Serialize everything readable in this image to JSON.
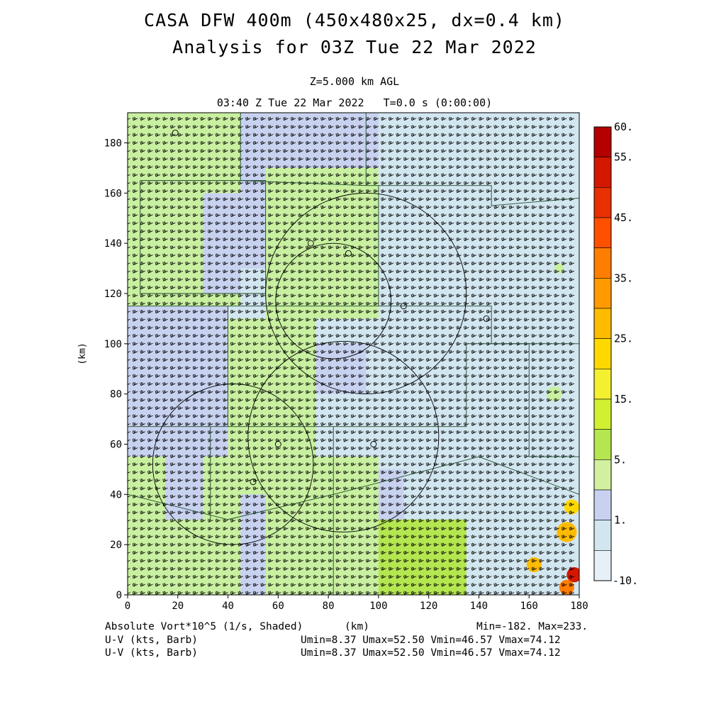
{
  "header": {
    "title_line1": "CASA DFW 400m (450x480x25, dx=0.4 km)",
    "title_line2": "Analysis for 03Z Tue 22 Mar 2022",
    "level": "Z=5.000 km AGL",
    "valid_time": "03:40 Z Tue 22 Mar 2022   T=0.0 s (0:00:00)"
  },
  "footer": {
    "field1": "Absolute Vort*10^5 (1/s, Shaded)",
    "field2": "U-V (kts, Barb)",
    "field3": "U-V (kts, Barb)",
    "xunit": "(km)",
    "minmax": "Min=-182. Max=233.",
    "uv_stats1": "Umin=8.37 Umax=52.50 Vmin=46.57 Vmax=74.12",
    "uv_stats2": "Umin=8.37 Umax=52.50 Vmin=46.57 Vmax=74.12"
  },
  "chart_data": {
    "type": "heatmap",
    "field": "Absolute Vort*10^5 (1/s)",
    "xlabel": "",
    "ylabel": "(km)",
    "xlim": [
      0,
      180
    ],
    "ylim": [
      0,
      192
    ],
    "xticks": [
      "0",
      "20",
      "40",
      "60",
      "80",
      "100",
      "120",
      "140",
      "160",
      "180"
    ],
    "yticks": [
      "0",
      "20",
      "40",
      "60",
      "80",
      "100",
      "120",
      "140",
      "160",
      "180"
    ],
    "colorbar": {
      "labels": [
        "60.",
        "55.",
        "45.",
        "35.",
        "25.",
        "15.",
        "5.",
        "1.",
        "-10."
      ],
      "colors": [
        "#b40000",
        "#d41800",
        "#e83000",
        "#ff5000",
        "#ff7d00",
        "#ff9a00",
        "#ffbb00",
        "#ffd800",
        "#f4f030",
        "#d2f032",
        "#b4e650",
        "#d2f0a0",
        "#c8d2f0",
        "#d2e6f0",
        "#e6f0f8"
      ]
    },
    "regions": [
      {
        "x0": 0,
        "x1": 10,
        "y0": 160,
        "y1": 192,
        "v": 20
      },
      {
        "x0": 0,
        "x1": 45,
        "y0": 115,
        "y1": 192,
        "v": 8
      },
      {
        "x0": 45,
        "x1": 100,
        "y0": 130,
        "y1": 192,
        "v": 3
      },
      {
        "x0": 55,
        "x1": 100,
        "y0": 110,
        "y1": 170,
        "v": 7
      },
      {
        "x0": 100,
        "x1": 180,
        "y0": 100,
        "y1": 192,
        "v": 0
      },
      {
        "x0": 30,
        "x1": 45,
        "y0": 120,
        "y1": 160,
        "v": 3
      },
      {
        "x0": 0,
        "x1": 40,
        "y0": 55,
        "y1": 115,
        "v": 3
      },
      {
        "x0": 40,
        "x1": 75,
        "y0": 55,
        "y1": 110,
        "v": 8
      },
      {
        "x0": 75,
        "x1": 95,
        "y0": 80,
        "y1": 100,
        "v": 3
      },
      {
        "x0": 95,
        "x1": 135,
        "y0": 50,
        "y1": 100,
        "v": 0
      },
      {
        "x0": 135,
        "x1": 180,
        "y0": 0,
        "y1": 100,
        "v": 0
      },
      {
        "x0": 0,
        "x1": 100,
        "y0": 0,
        "y1": 55,
        "v": 8
      },
      {
        "x0": 15,
        "x1": 30,
        "y0": 30,
        "y1": 70,
        "v": 3
      },
      {
        "x0": 45,
        "x1": 55,
        "y0": 0,
        "y1": 40,
        "v": 3
      },
      {
        "x0": 100,
        "x1": 135,
        "y0": 0,
        "y1": 30,
        "v": 14
      },
      {
        "x0": 100,
        "x1": 110,
        "y0": 30,
        "y1": 50,
        "v": 3
      },
      {
        "x0": 140,
        "x1": 180,
        "y0": 0,
        "y1": 30,
        "v": 0
      }
    ],
    "hotspots": [
      {
        "x": 175,
        "y": 25,
        "r": 4,
        "v": 28
      },
      {
        "x": 177,
        "y": 35,
        "r": 3,
        "v": 22
      },
      {
        "x": 162,
        "y": 12,
        "r": 3,
        "v": 25
      },
      {
        "x": 178,
        "y": 8,
        "r": 3,
        "v": 50
      },
      {
        "x": 175,
        "y": 3,
        "r": 3,
        "v": 35
      },
      {
        "x": 170,
        "y": 80,
        "r": 3,
        "v": 8
      },
      {
        "x": 172,
        "y": 130,
        "r": 2,
        "v": 8
      }
    ],
    "range_rings": [
      {
        "x": 82,
        "y": 117,
        "r": 23
      },
      {
        "x": 86,
        "y": 63,
        "r": 38
      },
      {
        "x": 42,
        "y": 52,
        "r": 32
      },
      {
        "x": 95,
        "y": 120,
        "r": 40
      }
    ],
    "counties": [
      [
        [
          5,
          165
        ],
        [
          55,
          165
        ],
        [
          55,
          120
        ],
        [
          5,
          120
        ],
        [
          5,
          165
        ]
      ],
      [
        [
          45,
          192
        ],
        [
          45,
          165
        ],
        [
          95,
          163
        ],
        [
          95,
          192
        ]
      ],
      [
        [
          95,
          163
        ],
        [
          145,
          163
        ],
        [
          145,
          155
        ],
        [
          180,
          158
        ]
      ],
      [
        [
          0,
          115
        ],
        [
          100,
          115
        ],
        [
          145,
          115
        ],
        [
          145,
          100
        ],
        [
          180,
          100
        ]
      ],
      [
        [
          40,
          115
        ],
        [
          40,
          67
        ],
        [
          0,
          67
        ]
      ],
      [
        [
          40,
          67
        ],
        [
          82,
          67
        ],
        [
          82,
          0
        ]
      ],
      [
        [
          82,
          67
        ],
        [
          135,
          67
        ],
        [
          135,
          100
        ]
      ],
      [
        [
          135,
          100
        ],
        [
          160,
          100
        ],
        [
          160,
          55
        ],
        [
          180,
          55
        ]
      ],
      [
        [
          0,
          40
        ],
        [
          40,
          30
        ],
        [
          82,
          40
        ],
        [
          140,
          55
        ],
        [
          180,
          40
        ]
      ],
      [
        [
          33,
          67
        ],
        [
          33,
          30
        ]
      ],
      [
        [
          100,
          115
        ],
        [
          100,
          163
        ]
      ]
    ],
    "radars": [
      {
        "x": 19,
        "y": 184
      },
      {
        "x": 73,
        "y": 140
      },
      {
        "x": 110,
        "y": 115
      },
      {
        "x": 143,
        "y": 110
      },
      {
        "x": 50,
        "y": 45
      },
      {
        "x": 98,
        "y": 60
      },
      {
        "x": 60,
        "y": 60
      },
      {
        "x": 88,
        "y": 136
      }
    ]
  }
}
